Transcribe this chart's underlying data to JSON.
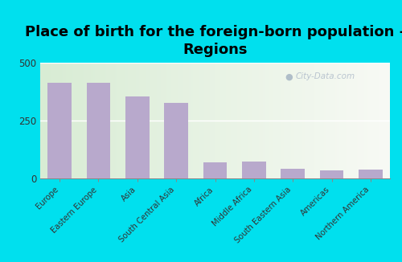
{
  "title": "Place of birth for the foreign-born population -\nRegions",
  "categories": [
    "Europe",
    "Eastern Europe",
    "Asia",
    "South Central Asia",
    "Africa",
    "Middle Africa",
    "South Eastern Asia",
    "Americas",
    "Northern America"
  ],
  "values": [
    415,
    413,
    355,
    325,
    70,
    72,
    40,
    33,
    38
  ],
  "bar_color": "#b8a9cc",
  "ylim": [
    0,
    500
  ],
  "yticks": [
    0,
    250,
    500
  ],
  "background_outer": "#00e0ee",
  "background_plot_left": "#d8ecd4",
  "background_plot_right": "#f8faf5",
  "title_fontsize": 13,
  "watermark": "City-Data.com",
  "tick_label_fontsize": 7.2,
  "ytick_fontsize": 8.5
}
